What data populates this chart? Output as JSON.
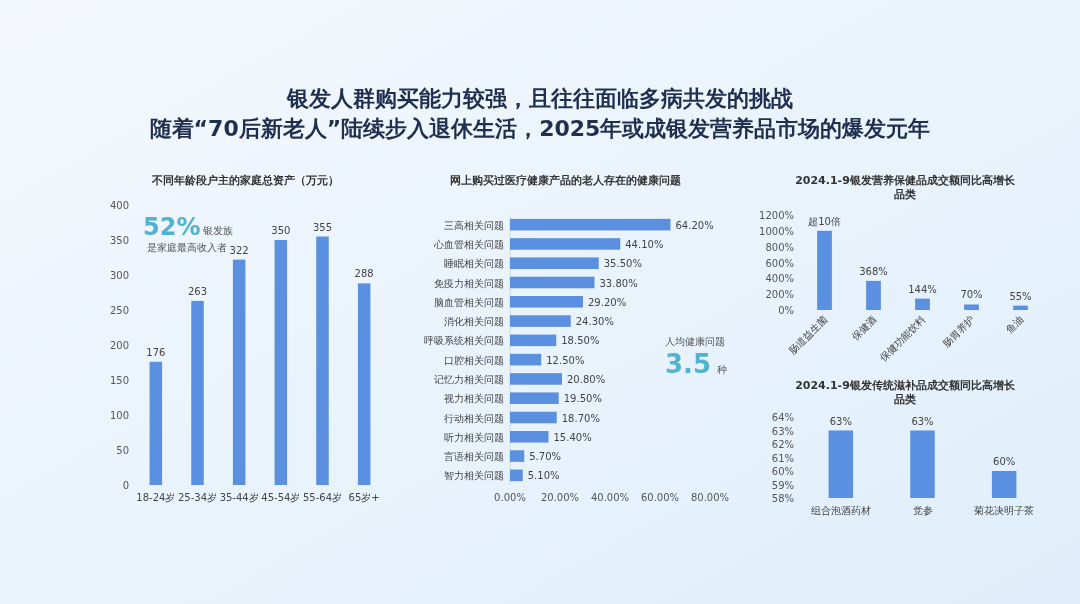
{
  "chart_data": [
    {
      "type": "other",
      "title": "银发人群购买能力较强，且往往面临多病共发的挑战",
      "subtitle": "随着“70后新老人”陆续步入退休生活，2025年或成银发营养品市场的爆发元年"
    },
    {
      "type": "bar",
      "title": "不同年龄段户主的家庭总资产（万元）",
      "categories": [
        "18-24岁",
        "25-34岁",
        "35-44岁",
        "45-54岁",
        "55-64岁",
        "65岁+"
      ],
      "values": [
        176,
        263,
        322,
        350,
        355,
        288
      ],
      "color": "#5b8fdf",
      "ylim": [
        0,
        400
      ],
      "yticks": [
        0,
        50,
        100,
        150,
        200,
        250,
        300,
        350,
        400
      ],
      "data_labels": true,
      "annotations": [
        "52%",
        "银发族",
        "是家庭最高收入者"
      ]
    },
    {
      "type": "bar",
      "orientation": "horizontal",
      "title": "网上购买过医疗健康产品的老人存在的健康问题",
      "categories": [
        "三高相关问题",
        "心血管相关问题",
        "睡眠相关问题",
        "免疫力相关问题",
        "脑血管相关问题",
        "消化相关问题",
        "呼吸系统相关问题",
        "口腔相关问题",
        "记忆力相关问题",
        "视力相关问题",
        "行动相关问题",
        "听力相关问题",
        "言语相关问题",
        "智力相关问题"
      ],
      "values": [
        64.2,
        44.1,
        35.5,
        33.8,
        29.2,
        24.3,
        18.5,
        12.5,
        20.8,
        19.5,
        18.7,
        15.4,
        5.7,
        5.1
      ],
      "value_labels": [
        "64.20%",
        "44.10%",
        "35.50%",
        "33.80%",
        "29.20%",
        "24.30%",
        "18.50%",
        "12.50%",
        "20.80%",
        "19.50%",
        "18.70%",
        "15.40%",
        "5.70%",
        "5.10%"
      ],
      "color": "#5b8fdf",
      "xlim": [
        0,
        80
      ],
      "xticks": [
        {
          "value": 0,
          "label": "0.00%"
        },
        {
          "value": 20,
          "label": "20.00%"
        },
        {
          "value": 40,
          "label": "40.00%"
        },
        {
          "value": 60,
          "label": "60.00%"
        },
        {
          "value": 80,
          "label": "80.00%"
        }
      ],
      "annotations": [
        "人均健康问题",
        "3.5",
        "种"
      ]
    },
    {
      "type": "bar",
      "title": "2024.1-9银发营养保健品成交额同比高增长品类",
      "categories": [
        "肠道益生菌",
        "保健酒",
        "保健功能饮料",
        "肠胃养护",
        "鱼油"
      ],
      "values": [
        1000,
        368,
        144,
        70,
        55
      ],
      "value_labels": [
        "超10倍",
        "368%",
        "144%",
        "70%",
        "55%"
      ],
      "color": "#5b8fdf",
      "ylim": [
        0,
        1200
      ],
      "yticks": [
        {
          "value": 0,
          "label": "0%"
        },
        {
          "value": 200,
          "label": "200%"
        },
        {
          "value": 400,
          "label": "400%"
        },
        {
          "value": 600,
          "label": "600%"
        },
        {
          "value": 800,
          "label": "800%"
        },
        {
          "value": 1000,
          "label": "1000%"
        },
        {
          "value": 1200,
          "label": "1200%"
        }
      ]
    },
    {
      "type": "bar",
      "title": "2024.1-9银发传统滋补品成交额同比高增长品类",
      "categories": [
        "组合泡酒药材",
        "党参",
        "菊花决明子茶"
      ],
      "values": [
        63,
        63,
        60
      ],
      "value_labels": [
        "63%",
        "63%",
        "60%"
      ],
      "color": "#5b8fdf",
      "ylim": [
        58,
        64
      ],
      "yticks": [
        {
          "value": 58,
          "label": "58%"
        },
        {
          "value": 59,
          "label": "59%"
        },
        {
          "value": 60,
          "label": "60%"
        },
        {
          "value": 61,
          "label": "61%"
        },
        {
          "value": 62,
          "label": "62%"
        },
        {
          "value": 63,
          "label": "63%"
        },
        {
          "value": 64,
          "label": "64%"
        }
      ]
    }
  ]
}
